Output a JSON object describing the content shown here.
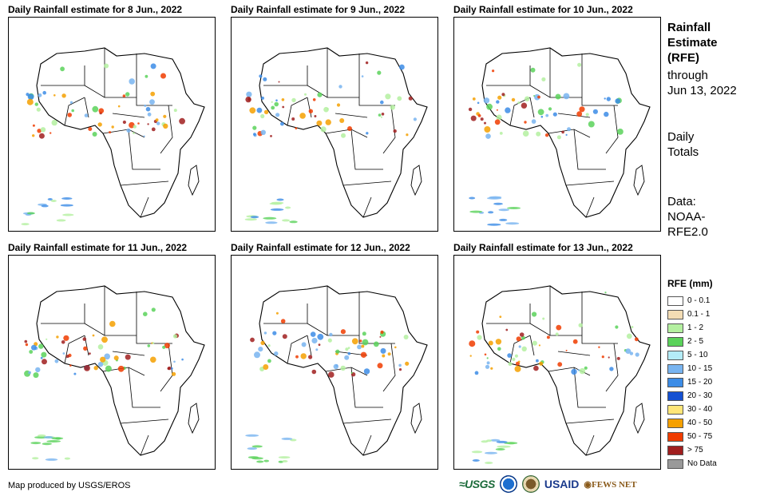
{
  "panels": [
    {
      "title": "Daily Rainfall estimate for 8 Jun., 2022"
    },
    {
      "title": "Daily Rainfall estimate for 9 Jun., 2022"
    },
    {
      "title": "Daily Rainfall estimate for 10 Jun., 2022"
    },
    {
      "title": "Daily Rainfall estimate for 11 Jun., 2022"
    },
    {
      "title": "Daily Rainfall estimate for 12 Jun., 2022"
    },
    {
      "title": "Daily Rainfall estimate for 13 Jun., 2022"
    }
  ],
  "sidebar": {
    "heading_lines": [
      "Rainfall",
      "Estimate",
      "(RFE)"
    ],
    "through_lines": [
      "through",
      "Jun 13, 2022"
    ],
    "totals_lines": [
      "Daily",
      "Totals"
    ],
    "data_lines": [
      "Data:",
      "NOAA-",
      "RFE2.0"
    ]
  },
  "legend": {
    "title": "RFE (mm)",
    "items": [
      {
        "label": "0 - 0.1",
        "color": "#ffffff"
      },
      {
        "label": "0.1 - 1",
        "color": "#f3dcb4"
      },
      {
        "label": "1 - 2",
        "color": "#b4f0a0"
      },
      {
        "label": "2 - 5",
        "color": "#5ad25a"
      },
      {
        "label": "5 - 10",
        "color": "#b4ecf8"
      },
      {
        "label": "10 - 15",
        "color": "#78b4f0"
      },
      {
        "label": "15 - 20",
        "color": "#3c8ce6"
      },
      {
        "label": "20 - 30",
        "color": "#1450d2"
      },
      {
        "label": "30 - 40",
        "color": "#ffe678"
      },
      {
        "label": "40 - 50",
        "color": "#f5a000"
      },
      {
        "label": "50 - 75",
        "color": "#f03c00"
      },
      {
        "label": "> 75",
        "color": "#a01e1e"
      },
      {
        "label": "No Data",
        "color": "#999999"
      }
    ]
  },
  "footer": {
    "credit": "Map produced by USGS/EROS",
    "logos": [
      "USGS",
      "NOAA",
      "DOI",
      "USAID",
      "FEWS NET"
    ]
  }
}
